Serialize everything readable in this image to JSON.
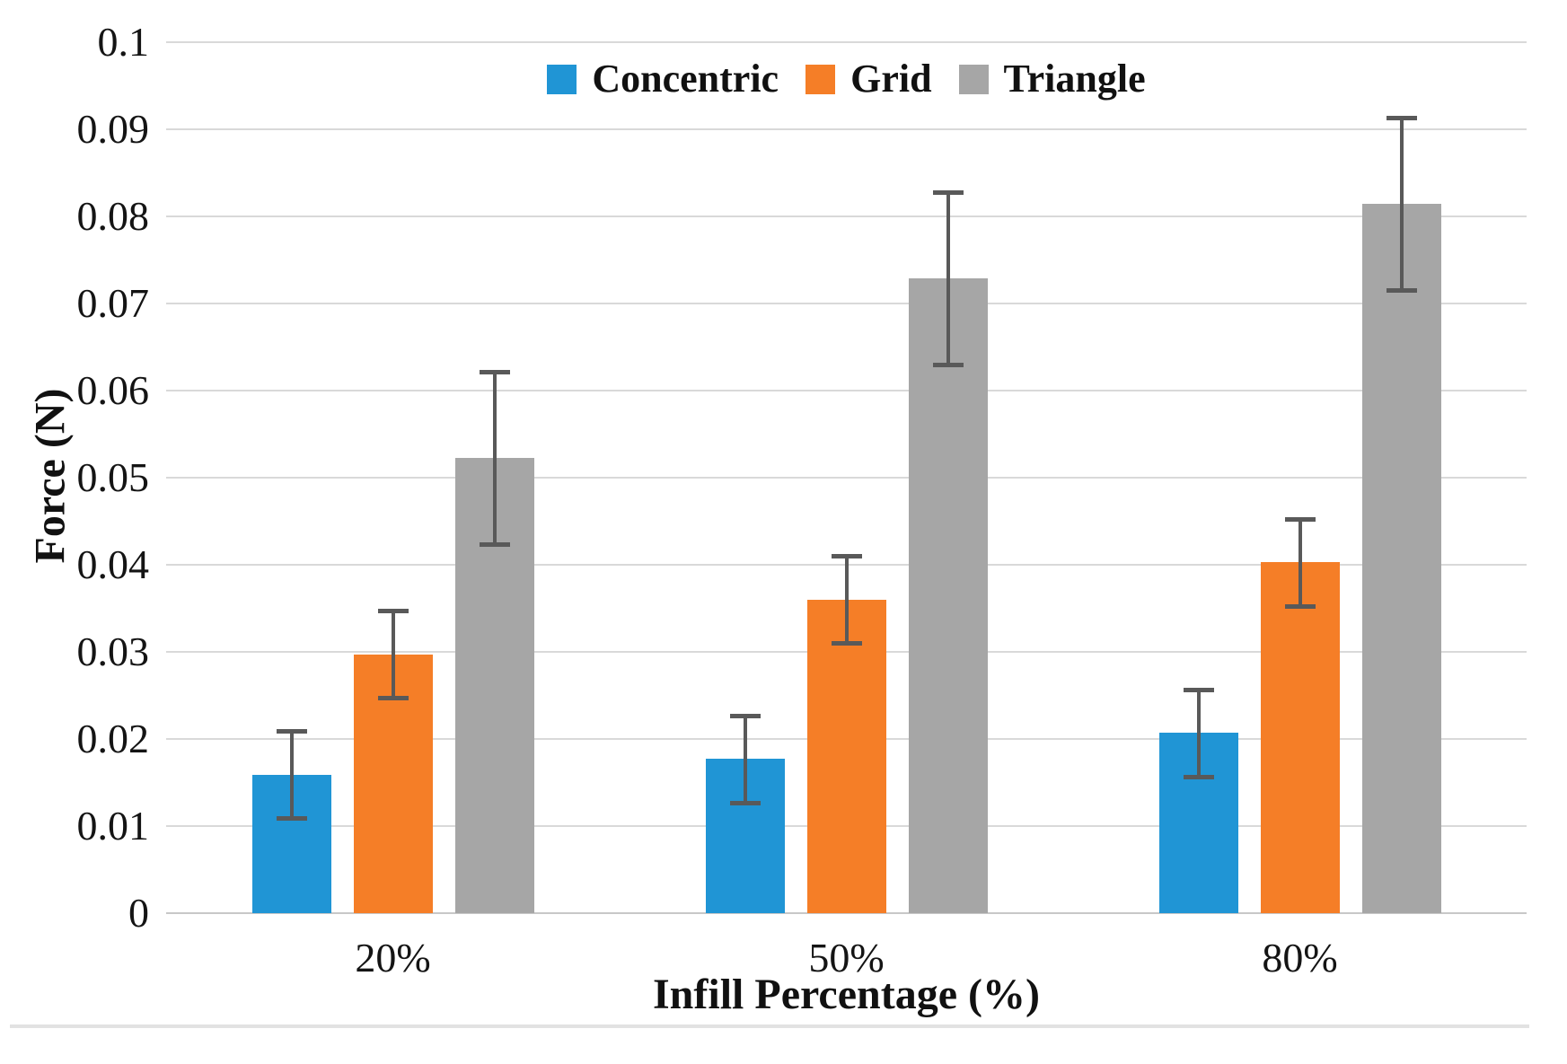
{
  "chart_data": {
    "type": "bar",
    "title": "",
    "xlabel": "Infill Percentage (%)",
    "ylabel": "Force (N)",
    "categories": [
      "20%",
      "50%",
      "80%"
    ],
    "series": [
      {
        "name": "Concentric",
        "color": "#2095d5",
        "values": [
          0.0159,
          0.0177,
          0.0207
        ],
        "errors": [
          0.005,
          0.005,
          0.005
        ]
      },
      {
        "name": "Grid",
        "color": "#f57e27",
        "values": [
          0.0297,
          0.036,
          0.0403
        ],
        "errors": [
          0.005,
          0.005,
          0.005
        ]
      },
      {
        "name": "Triangle",
        "color": "#a6a6a6",
        "values": [
          0.0523,
          0.0729,
          0.0814
        ],
        "errors": [
          0.0099,
          0.0099,
          0.0099
        ]
      }
    ],
    "ylim": [
      0,
      0.1
    ],
    "ytick_values": [
      0,
      0.01,
      0.02,
      0.03,
      0.04,
      0.05,
      0.06,
      0.07,
      0.08,
      0.09,
      0.1
    ],
    "ytick_labels": [
      "0",
      "0.01",
      "0.02",
      "0.03",
      "0.04",
      "0.05",
      "0.06",
      "0.07",
      "0.08",
      "0.09",
      "0.1"
    ],
    "grid": "horizontal",
    "legend_position": "top-center-inside",
    "colors": {
      "gridline": "#d9d9d9",
      "baseline": "#c8c8c8",
      "error_bar": "#595959",
      "background": "#ffffff",
      "bottom_rule": "#e2e2e2"
    }
  }
}
